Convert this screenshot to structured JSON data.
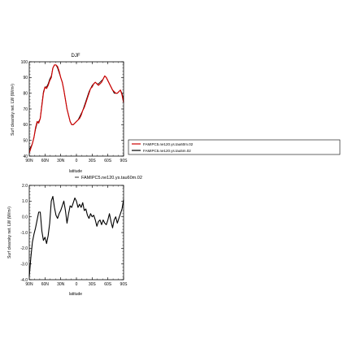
{
  "chart_data": [
    {
      "type": "line",
      "title": "DJF",
      "xlabel": "latitude",
      "ylabel": "Surf clearsky net. LW (W/m²)",
      "xlim": [
        90,
        -90
      ],
      "ylim": [
        40,
        100
      ],
      "x_ticks": [
        90,
        60,
        30,
        0,
        -30,
        -60,
        -90
      ],
      "x_tick_labels": [
        "90N",
        "60N",
        "30N",
        "0",
        "30S",
        "60S",
        "90S"
      ],
      "y_ticks": [
        40,
        50,
        60,
        70,
        80,
        90,
        100
      ],
      "y_tick_labels": [
        "40",
        "50",
        "60",
        "70",
        "80",
        "90",
        "100"
      ],
      "grid": false,
      "legend_position": "right",
      "series": [
        {
          "name": "FAMIPC5.ne120.ys.tau60m.02",
          "color": "#cc0000",
          "x": [
            90,
            87,
            84,
            81,
            78,
            75,
            72,
            69,
            66,
            63,
            60,
            57,
            54,
            51,
            48,
            45,
            42,
            39,
            36,
            33,
            30,
            27,
            24,
            21,
            18,
            15,
            12,
            9,
            6,
            3,
            0,
            -3,
            -6,
            -9,
            -12,
            -15,
            -18,
            -21,
            -24,
            -27,
            -30,
            -33,
            -36,
            -39,
            -42,
            -45,
            -48,
            -51,
            -54,
            -57,
            -60,
            -63,
            -66,
            -69,
            -72,
            -75,
            -78,
            -81,
            -84,
            -87,
            -90
          ],
          "y": [
            42,
            45,
            48,
            52,
            58,
            62,
            61,
            64,
            72,
            80,
            84,
            83,
            85,
            88,
            90,
            96,
            98,
            98,
            97,
            94,
            90,
            87,
            82,
            76,
            70,
            66,
            62,
            60,
            60,
            61,
            62,
            63,
            64,
            66,
            69,
            71,
            74,
            77,
            80,
            83,
            84,
            86,
            87,
            86,
            85,
            86,
            87,
            89,
            91,
            90,
            88,
            86,
            84,
            82,
            81,
            80,
            80,
            81,
            82,
            79,
            74
          ]
        },
        {
          "name": "FAMIPC5.ne120.ys.tau5m.02",
          "color": "#000000",
          "x": [
            90,
            87,
            84,
            81,
            78,
            75,
            72,
            69,
            66,
            63,
            60,
            57,
            54,
            51,
            48,
            45,
            42,
            39,
            36,
            33,
            30,
            27,
            24,
            21,
            18,
            15,
            12,
            9,
            6,
            3,
            0,
            -3,
            -6,
            -9,
            -12,
            -15,
            -18,
            -21,
            -24,
            -27,
            -30,
            -33,
            -36,
            -39,
            -42,
            -45,
            -48,
            -51,
            -54,
            -57,
            -60,
            -63,
            -66,
            -69,
            -72,
            -75,
            -78,
            -81,
            -84,
            -87,
            -90
          ],
          "y": [
            44,
            46,
            48,
            52,
            57,
            61,
            62,
            64,
            73,
            81,
            84,
            84,
            86,
            89,
            91,
            96,
            98,
            98,
            96,
            93,
            90,
            87,
            82,
            76,
            70,
            66,
            62,
            60,
            60,
            61,
            62,
            63,
            65,
            67,
            69,
            72,
            75,
            78,
            81,
            83,
            85,
            86,
            87,
            86,
            86,
            87,
            88,
            89,
            91,
            90,
            88,
            86,
            84,
            82,
            80,
            80,
            80,
            81,
            82,
            80,
            76
          ]
        }
      ]
    },
    {
      "type": "line",
      "title": "",
      "xlabel": "latitude",
      "ylabel": "Surf clearsky net. LW (W/m²)",
      "xlim": [
        90,
        -90
      ],
      "ylim": [
        -4.0,
        2.0
      ],
      "x_ticks": [
        90,
        60,
        30,
        0,
        -30,
        -60,
        -90
      ],
      "x_tick_labels": [
        "90N",
        "60N",
        "30N",
        "0",
        "30S",
        "60S",
        "90S"
      ],
      "y_ticks": [
        -4,
        -3,
        -2,
        -1,
        0,
        1,
        2
      ],
      "y_tick_labels": [
        "-4.0",
        "-3.0",
        "-2.0",
        "-1.0",
        "0.0",
        "1.0",
        "2.0"
      ],
      "grid": false,
      "legend_position": "top-right",
      "series": [
        {
          "name": "FAMIPC5.ne120.ys.tau60m.02",
          "color": "#000000",
          "x": [
            90,
            87,
            84,
            81,
            78,
            75,
            72,
            69,
            66,
            63,
            60,
            57,
            54,
            51,
            48,
            45,
            42,
            39,
            36,
            33,
            30,
            27,
            24,
            21,
            18,
            15,
            12,
            9,
            6,
            3,
            0,
            -3,
            -6,
            -9,
            -12,
            -15,
            -18,
            -21,
            -24,
            -27,
            -30,
            -33,
            -36,
            -39,
            -42,
            -45,
            -48,
            -51,
            -54,
            -57,
            -60,
            -63,
            -66,
            -69,
            -72,
            -75,
            -78,
            -81,
            -84,
            -87,
            -90
          ],
          "y": [
            -3.8,
            -2.6,
            -1.6,
            -1.1,
            -0.7,
            -0.2,
            0.3,
            0.3,
            -0.9,
            -1.5,
            -1.3,
            -1.7,
            -1.2,
            -0.4,
            1.0,
            1.3,
            0.6,
            0.1,
            -0.1,
            0.2,
            0.4,
            0.7,
            1.0,
            0.4,
            -0.4,
            0.2,
            0.7,
            0.6,
            0.9,
            1.2,
            1.0,
            0.6,
            0.8,
            0.6,
            0.9,
            0.4,
            0.5,
            0.1,
            -0.1,
            0.2,
            0.0,
            0.1,
            -0.2,
            -0.6,
            -0.3,
            -0.2,
            -0.5,
            -0.2,
            -0.4,
            -0.5,
            -0.2,
            0.2,
            -0.3,
            -0.7,
            -0.2,
            0.0,
            -0.4,
            -0.1,
            0.2,
            0.5,
            1.1
          ]
        }
      ]
    }
  ]
}
